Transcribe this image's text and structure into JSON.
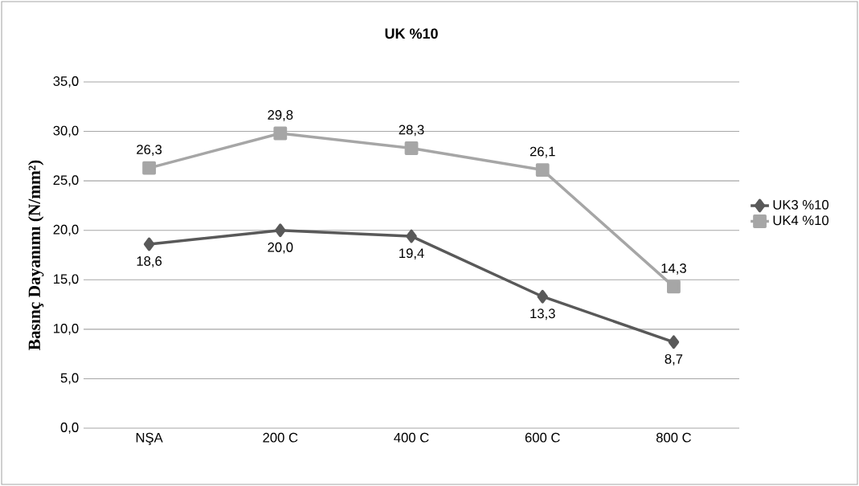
{
  "chart_data": {
    "type": "line",
    "title": "UK %10",
    "ylabel": "Basınç Dayanımı (N/mm²)",
    "categories": [
      "NŞA",
      "200 C",
      "400 C",
      "600 C",
      "800 C"
    ],
    "series": [
      {
        "name": "UK3 %10",
        "color": "#595959",
        "marker": "diamond",
        "values": [
          18.6,
          20.0,
          19.4,
          13.3,
          8.7
        ],
        "value_labels": [
          "18,6",
          "20,0",
          "19,4",
          "13,3",
          "8,7"
        ]
      },
      {
        "name": "UK4 %10",
        "color": "#a6a6a6",
        "marker": "square",
        "values": [
          26.3,
          29.8,
          28.3,
          26.1,
          14.3
        ],
        "value_labels": [
          "26,3",
          "29,8",
          "28,3",
          "26,1",
          "14,3"
        ]
      }
    ],
    "ylim": [
      0,
      35
    ],
    "yticks": [
      {
        "value": 0,
        "label": "0,0"
      },
      {
        "value": 5,
        "label": "5,0"
      },
      {
        "value": 10,
        "label": "10,0"
      },
      {
        "value": 15,
        "label": "15,0"
      },
      {
        "value": 20,
        "label": "20,0"
      },
      {
        "value": 25,
        "label": "25,0"
      },
      {
        "value": 30,
        "label": "30,0"
      },
      {
        "value": 35,
        "label": "35,0"
      }
    ],
    "grid": "y",
    "legend": "right"
  }
}
